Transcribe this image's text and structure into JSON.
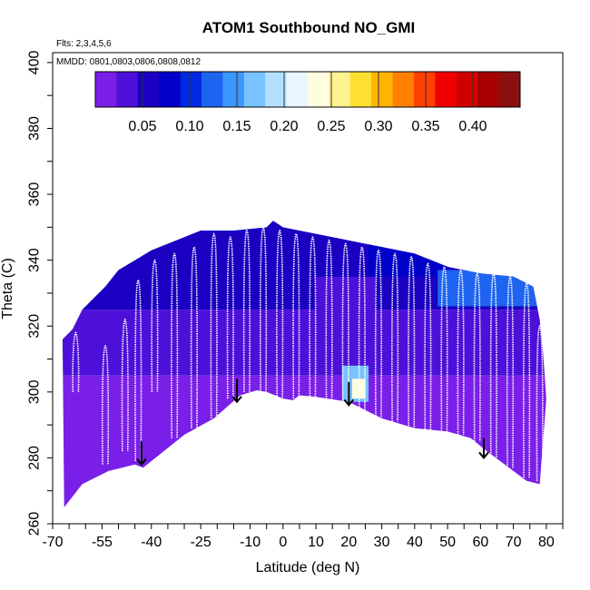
{
  "chart_data": {
    "type": "heatmap",
    "title": "ATOM1 Southbound NO_GMI",
    "annotation_flights": "Flts: 2,3,4,5,6",
    "annotation_dates": "MMDD: 0801,0803,0806,0808,0812",
    "xlabel": "Latitude (deg N)",
    "ylabel": "Theta (C)",
    "xlim": [
      -70,
      85
    ],
    "ylim": [
      260,
      403
    ],
    "xticks": [
      -70,
      -55,
      -40,
      -25,
      -10,
      0,
      10,
      20,
      30,
      40,
      50,
      60,
      70,
      80
    ],
    "xtick_labels": [
      "-70",
      "-55",
      "-40",
      "-25",
      "-10",
      "0",
      "10",
      "20",
      "30",
      "40",
      "50",
      "60",
      "70",
      "80"
    ],
    "yticks": [
      260,
      280,
      300,
      320,
      340,
      360,
      380,
      400
    ],
    "ytick_labels": [
      "260",
      "280",
      "300",
      "320",
      "340",
      "360",
      "380",
      "400"
    ],
    "colorbar": {
      "range": [
        0.0,
        0.45
      ],
      "ticks": [
        0.05,
        0.1,
        0.15,
        0.2,
        0.25,
        0.3,
        0.35,
        0.4
      ],
      "tick_labels": [
        "0.05",
        "0.10",
        "0.15",
        "0.20",
        "0.25",
        "0.30",
        "0.35",
        "0.40"
      ],
      "colors": [
        "#7a1fe8",
        "#4d10d8",
        "#1a00c0",
        "#0000c8",
        "#0028e0",
        "#1e64f0",
        "#3c96ff",
        "#78c2ff",
        "#b4e0ff",
        "#e8f6ff",
        "#fffde0",
        "#fff390",
        "#ffe030",
        "#ffb400",
        "#ff8000",
        "#ff4000",
        "#f00000",
        "#d00000",
        "#a80000",
        "#8a1010"
      ]
    },
    "surface_boundary": [
      [
        -66.5,
        265
      ],
      [
        -61,
        272
      ],
      [
        -53,
        276
      ],
      [
        -45,
        278
      ],
      [
        -42.5,
        277
      ],
      [
        -40,
        279
      ],
      [
        -30,
        287
      ],
      [
        -21,
        292
      ],
      [
        -13,
        299
      ],
      [
        -8,
        300.5
      ],
      [
        -5,
        300
      ],
      [
        0,
        298
      ],
      [
        3,
        297.5
      ],
      [
        5,
        299
      ],
      [
        10,
        298.5
      ],
      [
        20,
        297
      ],
      [
        30,
        292
      ],
      [
        40,
        289
      ],
      [
        50,
        288
      ],
      [
        57,
        286
      ],
      [
        62,
        282
      ],
      [
        66,
        279
      ],
      [
        70,
        276
      ],
      [
        74,
        273
      ],
      [
        78,
        272
      ]
    ],
    "top_boundary": [
      [
        -67,
        316
      ],
      [
        -64,
        319
      ],
      [
        -61,
        325
      ],
      [
        -57,
        329
      ],
      [
        -54,
        332
      ],
      [
        -50,
        337
      ],
      [
        -45,
        340
      ],
      [
        -40,
        343
      ],
      [
        -35,
        345
      ],
      [
        -25,
        349
      ],
      [
        -15,
        349
      ],
      [
        -5,
        350
      ],
      [
        -3,
        352
      ],
      [
        0,
        350
      ],
      [
        10,
        348
      ],
      [
        20,
        346
      ],
      [
        30,
        344
      ],
      [
        40,
        342
      ],
      [
        50,
        338
      ],
      [
        60,
        336
      ],
      [
        70,
        335
      ],
      [
        76,
        332
      ],
      [
        78,
        322
      ],
      [
        79,
        312
      ],
      [
        80,
        298
      ]
    ],
    "arrows": [
      [
        -43,
        285,
        278
      ],
      [
        -14,
        304,
        297
      ],
      [
        20,
        303,
        296
      ],
      [
        61,
        286,
        280
      ]
    ],
    "regions": [
      {
        "lat_range": [
          -67,
          80
        ],
        "theta_range": [
          265,
          305
        ],
        "value": 0.015
      },
      {
        "lat_range": [
          -67,
          80
        ],
        "theta_range": [
          305,
          325
        ],
        "value": 0.035
      },
      {
        "lat_range": [
          -67,
          80
        ],
        "theta_range": [
          325,
          352
        ],
        "value": 0.055
      },
      {
        "lat_range": [
          10,
          28
        ],
        "theta_range": [
          322,
          335
        ],
        "value": 0.04
      },
      {
        "lat_range": [
          26,
          50
        ],
        "theta_range": [
          335,
          345
        ],
        "value": 0.09
      },
      {
        "lat_range": [
          47,
          78
        ],
        "theta_range": [
          326,
          337
        ],
        "value": 0.12
      },
      {
        "lat_range": [
          18,
          26
        ],
        "theta_range": [
          297,
          308
        ],
        "value": 0.17
      },
      {
        "lat_range": [
          21,
          25
        ],
        "theta_range": [
          298,
          304
        ],
        "value": 0.23
      }
    ],
    "profiles": [
      {
        "lat": -63,
        "top": 318,
        "bottom": 300
      },
      {
        "lat": -54,
        "top": 314,
        "bottom": 278
      },
      {
        "lat": -48,
        "top": 322,
        "bottom": 282
      },
      {
        "lat": -44,
        "top": 334,
        "bottom": 279
      },
      {
        "lat": -39,
        "top": 340,
        "bottom": 300
      },
      {
        "lat": -33,
        "top": 342,
        "bottom": 286
      },
      {
        "lat": -27,
        "top": 344,
        "bottom": 289
      },
      {
        "lat": -21,
        "top": 348,
        "bottom": 292
      },
      {
        "lat": -16,
        "top": 347,
        "bottom": 298
      },
      {
        "lat": -11,
        "top": 349,
        "bottom": 300
      },
      {
        "lat": -6,
        "top": 350,
        "bottom": 300
      },
      {
        "lat": -1,
        "top": 349,
        "bottom": 298
      },
      {
        "lat": 4,
        "top": 348,
        "bottom": 298
      },
      {
        "lat": 9,
        "top": 347,
        "bottom": 298
      },
      {
        "lat": 14,
        "top": 346,
        "bottom": 297
      },
      {
        "lat": 19,
        "top": 345,
        "bottom": 296
      },
      {
        "lat": 24,
        "top": 344,
        "bottom": 294
      },
      {
        "lat": 29,
        "top": 343,
        "bottom": 292
      },
      {
        "lat": 34,
        "top": 342,
        "bottom": 291
      },
      {
        "lat": 39,
        "top": 341,
        "bottom": 289
      },
      {
        "lat": 44,
        "top": 339,
        "bottom": 288
      },
      {
        "lat": 49,
        "top": 338,
        "bottom": 288
      },
      {
        "lat": 54,
        "top": 337,
        "bottom": 287
      },
      {
        "lat": 59,
        "top": 336,
        "bottom": 285
      },
      {
        "lat": 64,
        "top": 336,
        "bottom": 280
      },
      {
        "lat": 69,
        "top": 335,
        "bottom": 277
      },
      {
        "lat": 74,
        "top": 333,
        "bottom": 274
      },
      {
        "lat": 78,
        "top": 320,
        "bottom": 273
      }
    ]
  }
}
